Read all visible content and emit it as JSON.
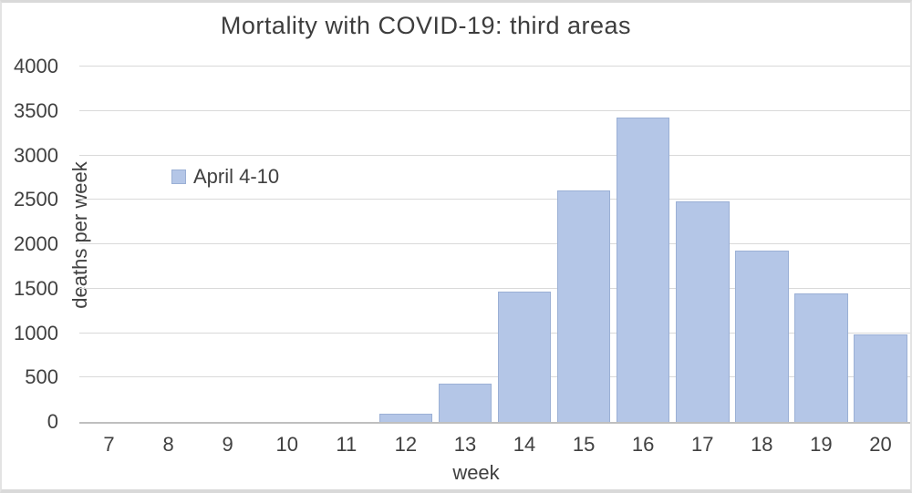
{
  "chart_data": {
    "type": "bar",
    "title": "Mortality with COVID-19: third areas",
    "xlabel": "week",
    "ylabel": "deaths per week",
    "legend_entries": [
      "April 4-10"
    ],
    "legend_position": "inside-upper-left",
    "categories": [
      7,
      8,
      9,
      10,
      11,
      12,
      13,
      14,
      15,
      16,
      17,
      18,
      19,
      20
    ],
    "values": [
      0,
      0,
      0,
      0,
      0,
      90,
      430,
      1470,
      2610,
      3430,
      2480,
      1930,
      1450,
      980
    ],
    "ylim": [
      0,
      4000
    ],
    "ytick_step": 500,
    "ytick_labels": [
      "0",
      "500",
      "1000",
      "1500",
      "2000",
      "2500",
      "3000",
      "3500",
      "4000"
    ],
    "grid": true,
    "colors": {
      "bar_fill": "#b4c6e7",
      "bar_border": "#8fa5c9",
      "gridline": "#d9d9d9",
      "axis_line": "#bfbfbf",
      "text": "#404040",
      "frame_border": "#d9d9d9"
    }
  }
}
